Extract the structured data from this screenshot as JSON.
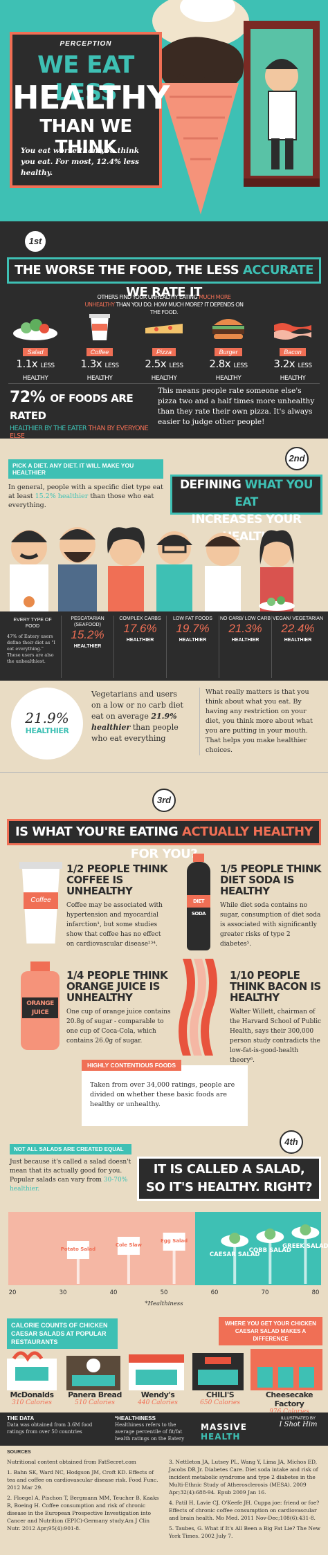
{
  "hero": {
    "kicker": "PERCEPTION",
    "title_line1": "WE EAT LESS",
    "title_line2": "HEALTHY",
    "title_line3": "THAN WE THINK",
    "subtitle": "You eat worse than you think you eat. For most, 12.4% less healthy."
  },
  "section1": {
    "badge": "1st",
    "heading_a": "THE WORSE THE FOOD, THE LESS",
    "heading_b": "ACCURATE",
    "heading_c": "WE RATE IT",
    "intro_a": "OTHERS FIND YOUR UNHEALTHY EATING",
    "intro_b": "MUCH MORE UNHEALTHY",
    "intro_c": "THAN YOU DO. HOW MUCH MORE? IT DEPENDS ON THE FOOD.",
    "foods": [
      {
        "name": "Salad",
        "ratio": "1.1x",
        "label": "LESS HEALTHY"
      },
      {
        "name": "Coffee",
        "ratio": "1.3x",
        "label": "LESS HEALTHY"
      },
      {
        "name": "Pizza",
        "ratio": "2.5x",
        "label": "LESS HEALTHY"
      },
      {
        "name": "Burger",
        "ratio": "2.8x",
        "label": "LESS HEALTHY"
      },
      {
        "name": "Bacon",
        "ratio": "3.2x",
        "label": "LESS HEALTHY"
      }
    ],
    "stat_big": "72%",
    "stat_line1": "OF FOODS ARE RATED",
    "stat_line2_a": "HEALTHIER BY THE EATER",
    "stat_line2_b": "THAN BY EVERYONE ELSE",
    "stat_text": "This means people rate someone else's pizza two and a half times more unhealthy than they rate their own pizza. It's always easier to judge other people!"
  },
  "section2": {
    "badge": "2nd",
    "kicker": "PICK A DIET. ANY DIET. IT WILL MAKE YOU HEALTHIER",
    "kicker_text_a": "In general, people with a specific diet type eat at least",
    "kicker_text_b": "15.2% healthier",
    "kicker_text_c": "than those who eat everything.",
    "heading_a": "DEFINING",
    "heading_b": "WHAT YOU EAT",
    "heading_c": "INCREASES YOUR HEALTH",
    "diets": [
      {
        "name": "EVERY TYPE OF FOOD",
        "pct": "",
        "label": "",
        "note": "47% of Eatery users define their diet as \"I eat everything.\" These users are also the unhealthiest."
      },
      {
        "name": "PESCATARIAN (SEAFOOD)",
        "pct": "15.2%",
        "label": "HEALTHIER",
        "note": ""
      },
      {
        "name": "COMPLEX CARBS",
        "pct": "17.6%",
        "label": "HEALTHIER",
        "note": ""
      },
      {
        "name": "LOW FAT FOODS",
        "pct": "19.7%",
        "label": "HEALTHIER",
        "note": ""
      },
      {
        "name": "NO CARB/ LOW CARB",
        "pct": "21.3%",
        "label": "HEALTHIER",
        "note": ""
      },
      {
        "name": "VEGAN/ VEGETARIAN",
        "pct": "22.4%",
        "label": "HEALTHIER",
        "note": ""
      }
    ],
    "circle_pct": "21.9%",
    "circle_label": "HEALTHIER",
    "circle_text_a": "Vegetarians and users on a low or no carb diet eat on average",
    "circle_text_b": "21.9% healthier",
    "circle_text_c": "than people who eat everything",
    "right_text": "What really matters is that you think about what you eat. By having any restriction on your diet, you think more about what you are putting in your mouth. That helps you make healthier choices."
  },
  "section3": {
    "badge": "3rd",
    "heading_a": "IS WHAT YOU'RE EATING",
    "heading_b": "ACTUALLY HEALTHY",
    "heading_c": "FOR YOU?",
    "items": [
      {
        "frac": "1/2",
        "title": "PEOPLE THINK COFFEE IS UNHEALTHY",
        "text": "Coffee may be associated with hypertension and myocardial infarction¹, but some studies show that coffee has no effect on cardiovascular disease²³⁴.",
        "icon_label": "Coffee"
      },
      {
        "frac": "1/5",
        "title": "PEOPLE THINK DIET SODA IS HEALTHY",
        "text": "While diet soda contains no sugar, consumption of diet soda is associated with significantly greater risks of type 2 diabetes⁵.",
        "icon_label": "DIET SODA"
      },
      {
        "frac": "1/4",
        "title": "PEOPLE THINK ORANGE JUICE IS UNHEALTHY",
        "text": "One cup of orange juice contains 20.8g of sugar - comparable to one cup of Coca-Cola, which contains 26.0g of sugar.",
        "icon_label": "ORANGE JUICE"
      },
      {
        "frac": "1/10",
        "title": "PEOPLE THINK BACON IS HEALTHY",
        "text": "Walter Willett, chairman of the Harvard School of Public Health, says their 300,000 person study contradicts the low-fat-is-good-health theory⁶.",
        "icon_label": ""
      }
    ],
    "contentious_tag": "HIGHLY CONTENTIOUS FOODS",
    "contentious_text": "Taken from over 34,000 ratings, people are divided on whether these basic foods are healthy or unhealthy."
  },
  "section4": {
    "badge": "4th",
    "kicker": "NOT ALL SALADS ARE CREATED EQUAL",
    "kicker_text_a": "Just because it's called a salad doesn't mean that its actually good for you. Popular salads can vary from",
    "kicker_text_b": "30-70% healthier.",
    "heading_line1": "IT IS CALLED A SALAD,",
    "heading_line2": "SO IT'S HEALTHY. RIGHT?",
    "axis_ticks": [
      "20",
      "30",
      "40",
      "50",
      "60",
      "70",
      "80"
    ],
    "axis_caption": "*Healthiness"
  },
  "chart_data": {
    "type": "bar",
    "categories": [
      "Potato Salad",
      "Cole Slaw",
      "Egg Salad",
      "CAESAR SALAD",
      "COBB SALAD",
      "GREEK SALAD"
    ],
    "values": [
      33,
      43,
      52,
      64,
      71,
      78
    ],
    "title": "",
    "xlabel": "*Healthiness",
    "ylabel": "",
    "xlim": [
      20,
      80
    ]
  },
  "restaurants": {
    "title": "CALORIE COUNTS OF CHICKEN CAESAR SALADS AT POPULAR RESTAURANTS",
    "right_note": "WHERE YOU GET YOUR CHICKEN CAESAR SALAD MAKES A DIFFERENCE",
    "list": [
      {
        "name": "McDonalds",
        "cal": "310 Calories"
      },
      {
        "name": "Panera Bread",
        "cal": "510 Calories"
      },
      {
        "name": "Wendy's",
        "cal": "440 Calories"
      },
      {
        "name": "CHILI'S",
        "cal": "650 Calories"
      },
      {
        "name": "Cheesecake Factory",
        "cal": "976 Calories"
      }
    ]
  },
  "footer": {
    "data_title": "THE DATA",
    "data_text": "Data was obtained from 3.6M food ratings from over 50 countries",
    "health_title": "*HEALTHINESS",
    "health_text": "Healthiness refers to the average percentile of fit/fat health ratings on the Eatery",
    "brand": "MASSIVE",
    "brand_b": "HEALTH",
    "illustrated": "ILLUSTRATED BY",
    "illustrator": "I Shot Him",
    "sources_title": "SOURCES",
    "sources_left": [
      "Nutritional content obtained from FatSecret.com",
      "1. Bahn SK, Ward NC, Hodgson JM, Croft KD. Effects of tea and coffee on cardiovascular disease risk. Food Func. 2012 Mar 29.",
      "2. Floegel A, Pischon T, Bergmann MM, Teucher B, Kaaks R, Boeing H. Coffee consumption and risk of chronic disease in the European Prospective Investigation into Cancer and Nutrition (EPIC)-Germany study.Am J Clin Nutr. 2012 Apr;95(4):901-8."
    ],
    "sources_right": [
      "3. Nettleton JA, Lutsey PL, Wang Y, Lima JA, Michos ED, Jacobs DR Jr. Diabetes Care. Diet soda intake and risk of incident metabolic syndrome and type 2 diabetes in the Multi-Ethnic Study of Atherosclerosis (MESA). 2009 Apr;32(4):688-94. Epub 2009 Jan 16.",
      "4. Patil H, Lavie CJ, O'Keefe JH. Cuppa joe: friend or foe? Effects of chronic coffee consumption on cardiovascular and brain health. Mo Med. 2011 Nov-Dec;108(6):431-8.",
      "5. Taubes, G. What if It's All Been a Big Fat Lie? The New York Times. 2002 July 7."
    ]
  }
}
